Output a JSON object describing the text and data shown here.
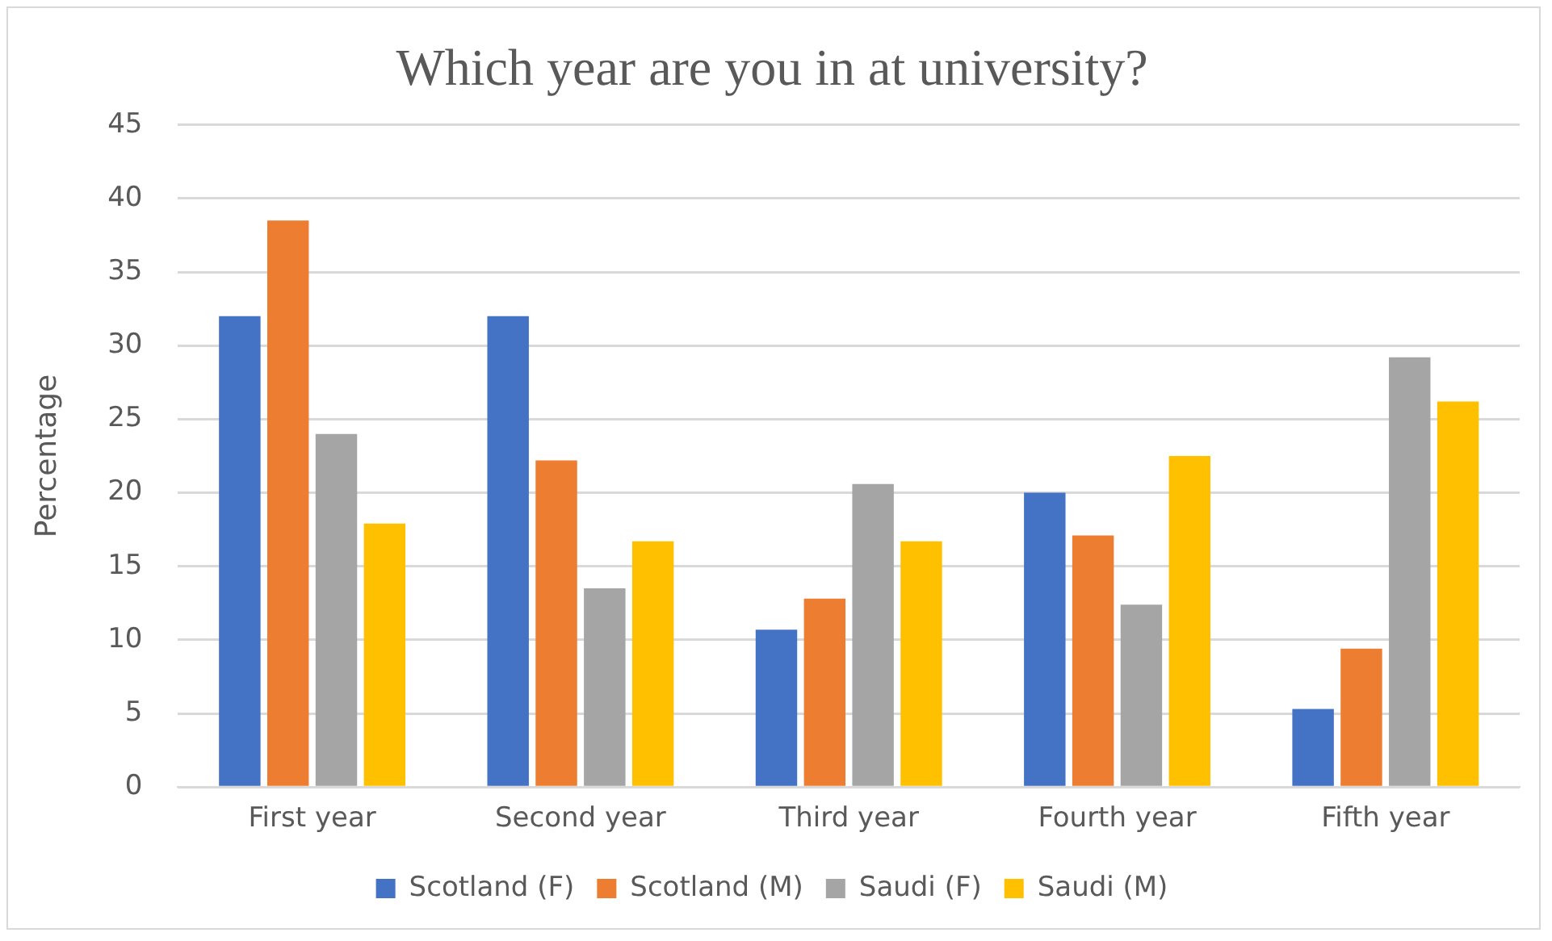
{
  "chart_data": {
    "type": "bar",
    "title": "Which year are you in at university?",
    "ylabel": "Percentage",
    "categories": [
      "First year",
      "Second year",
      "Third year",
      "Fourth year",
      "Fifth year"
    ],
    "series": [
      {
        "name": "Scotland (F)",
        "color": "#4472c4",
        "values": [
          32,
          32,
          10.7,
          20,
          5.3
        ]
      },
      {
        "name": "Scotland (M)",
        "color": "#ed7d31",
        "values": [
          38.5,
          22.2,
          12.8,
          17.1,
          9.4
        ]
      },
      {
        "name": "Saudi (F)",
        "color": "#a5a5a5",
        "values": [
          24,
          13.5,
          20.6,
          12.4,
          29.2
        ]
      },
      {
        "name": "Saudi (M)",
        "color": "#ffc000",
        "values": [
          17.9,
          16.7,
          16.7,
          22.5,
          26.2
        ]
      }
    ],
    "ylim": [
      0,
      45
    ],
    "yticks": [
      0,
      5,
      10,
      15,
      20,
      25,
      30,
      35,
      40,
      45
    ],
    "grid": "y",
    "legend": "bottom"
  }
}
